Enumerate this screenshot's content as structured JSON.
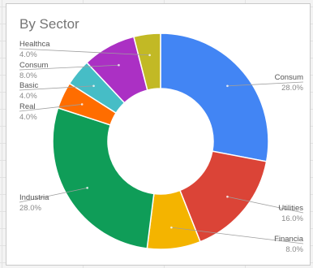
{
  "chart_data": {
    "type": "pie",
    "donut": true,
    "title": "By Sector",
    "slices": [
      {
        "label": "Consum",
        "value_label": "28.0%",
        "value": 28.0,
        "color": "#4285f4"
      },
      {
        "label": "Utilities",
        "value_label": "16.0%",
        "value": 16.0,
        "color": "#db4437"
      },
      {
        "label": "Financia",
        "value_label": "8.0%",
        "value": 8.0,
        "color": "#f4b400"
      },
      {
        "label": "Industria",
        "value_label": "28.0%",
        "value": 28.0,
        "color": "#0f9d58"
      },
      {
        "label": "Real",
        "value_label": "4.0%",
        "value": 4.0,
        "color": "#ff6d00"
      },
      {
        "label": "Basic",
        "value_label": "4.0%",
        "value": 4.0,
        "color": "#46bdc6"
      },
      {
        "label": "Consum",
        "value_label": "8.0%",
        "value": 8.0,
        "color": "#ab30c4"
      },
      {
        "label": "Healthca",
        "value_label": "4.0%",
        "value": 4.0,
        "color": "#c2b925"
      }
    ],
    "legend": "none"
  }
}
